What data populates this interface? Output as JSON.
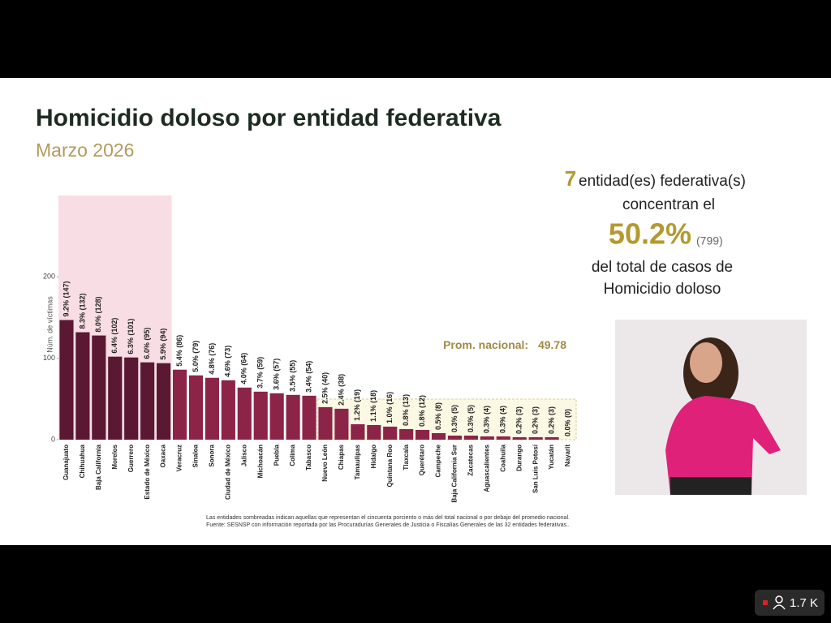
{
  "chart_data": {
    "type": "bar",
    "title": "Homicidio doloso por entidad federativa",
    "subtitle": "Marzo 2026",
    "y_label": "Núm. de víctimas",
    "categories": [
      "Guanajuato",
      "Chihuahua",
      "Baja California",
      "Morelos",
      "Guerrero",
      "Estado de México",
      "Oaxaca",
      "Veracruz",
      "Sinaloa",
      "Sonora",
      "Ciudad de México",
      "Jalisco",
      "Michoacán",
      "Puebla",
      "Colima",
      "Tabasco",
      "Nuevo León",
      "Chiapas",
      "Tamaulipas",
      "Hidalgo",
      "Quintana Roo",
      "Tlaxcala",
      "Querétaro",
      "Campeche",
      "Baja California Sur",
      "Zacatecas",
      "Aguascalientes",
      "Coahuila",
      "Durango",
      "San Luis Potosí",
      "Yucatán",
      "Nayarit"
    ],
    "values": [
      147,
      132,
      128,
      102,
      101,
      95,
      94,
      86,
      79,
      76,
      73,
      64,
      59,
      57,
      55,
      54,
      40,
      38,
      19,
      18,
      16,
      13,
      12,
      8,
      5,
      5,
      4,
      4,
      3,
      3,
      3,
      0
    ],
    "value_labels": [
      "9.2% (147)",
      "8.3% (132)",
      "8.0% (128)",
      "6.4% (102)",
      "6.3% (101)",
      "6.0% (95)",
      "5.9% (94)",
      "5.4% (86)",
      "5.0% (79)",
      "4.8% (76)",
      "4.6% (73)",
      "4.0% (64)",
      "3.7% (59)",
      "3.6% (57)",
      "3.5% (55)",
      "3.4% (54)",
      "2.5% (40)",
      "2.4% (38)",
      "1.2% (19)",
      "1.1% (18)",
      "1.0% (16)",
      "0.8% (13)",
      "0.8% (12)",
      "0.5% (8)",
      "0.3% (5)",
      "0.3% (5)",
      "0.3% (4)",
      "0.3% (4)",
      "0.2% (3)",
      "0.2% (3)",
      "0.2% (3)",
      "0.0% (0)"
    ],
    "color": "#8c2447",
    "highlight_color": "#5a1832",
    "ylim": [
      0,
      300
    ],
    "yticks": [
      0,
      100,
      200
    ],
    "average_label": "Prom. nacional:",
    "average": 49.78,
    "footnotes": [
      "Las entidades sombreadas indican aquellas que representan el cincuenta porciento o más del total nacional o por debajo del promedio nacional.",
      "Fuente: SESNSP con información reportada por las Procuradurías Generales de Justicia o Fiscalías Generales de las 32 entidades federativas.."
    ]
  },
  "summary": {
    "count": 7,
    "line1": "entidad(es) federativa(s)",
    "line2": "concentran el",
    "percent": "50.2%",
    "cases": "(799)",
    "line3": "del total de casos de",
    "line4": "Homicidio doloso"
  },
  "viewers": "1.7 K"
}
